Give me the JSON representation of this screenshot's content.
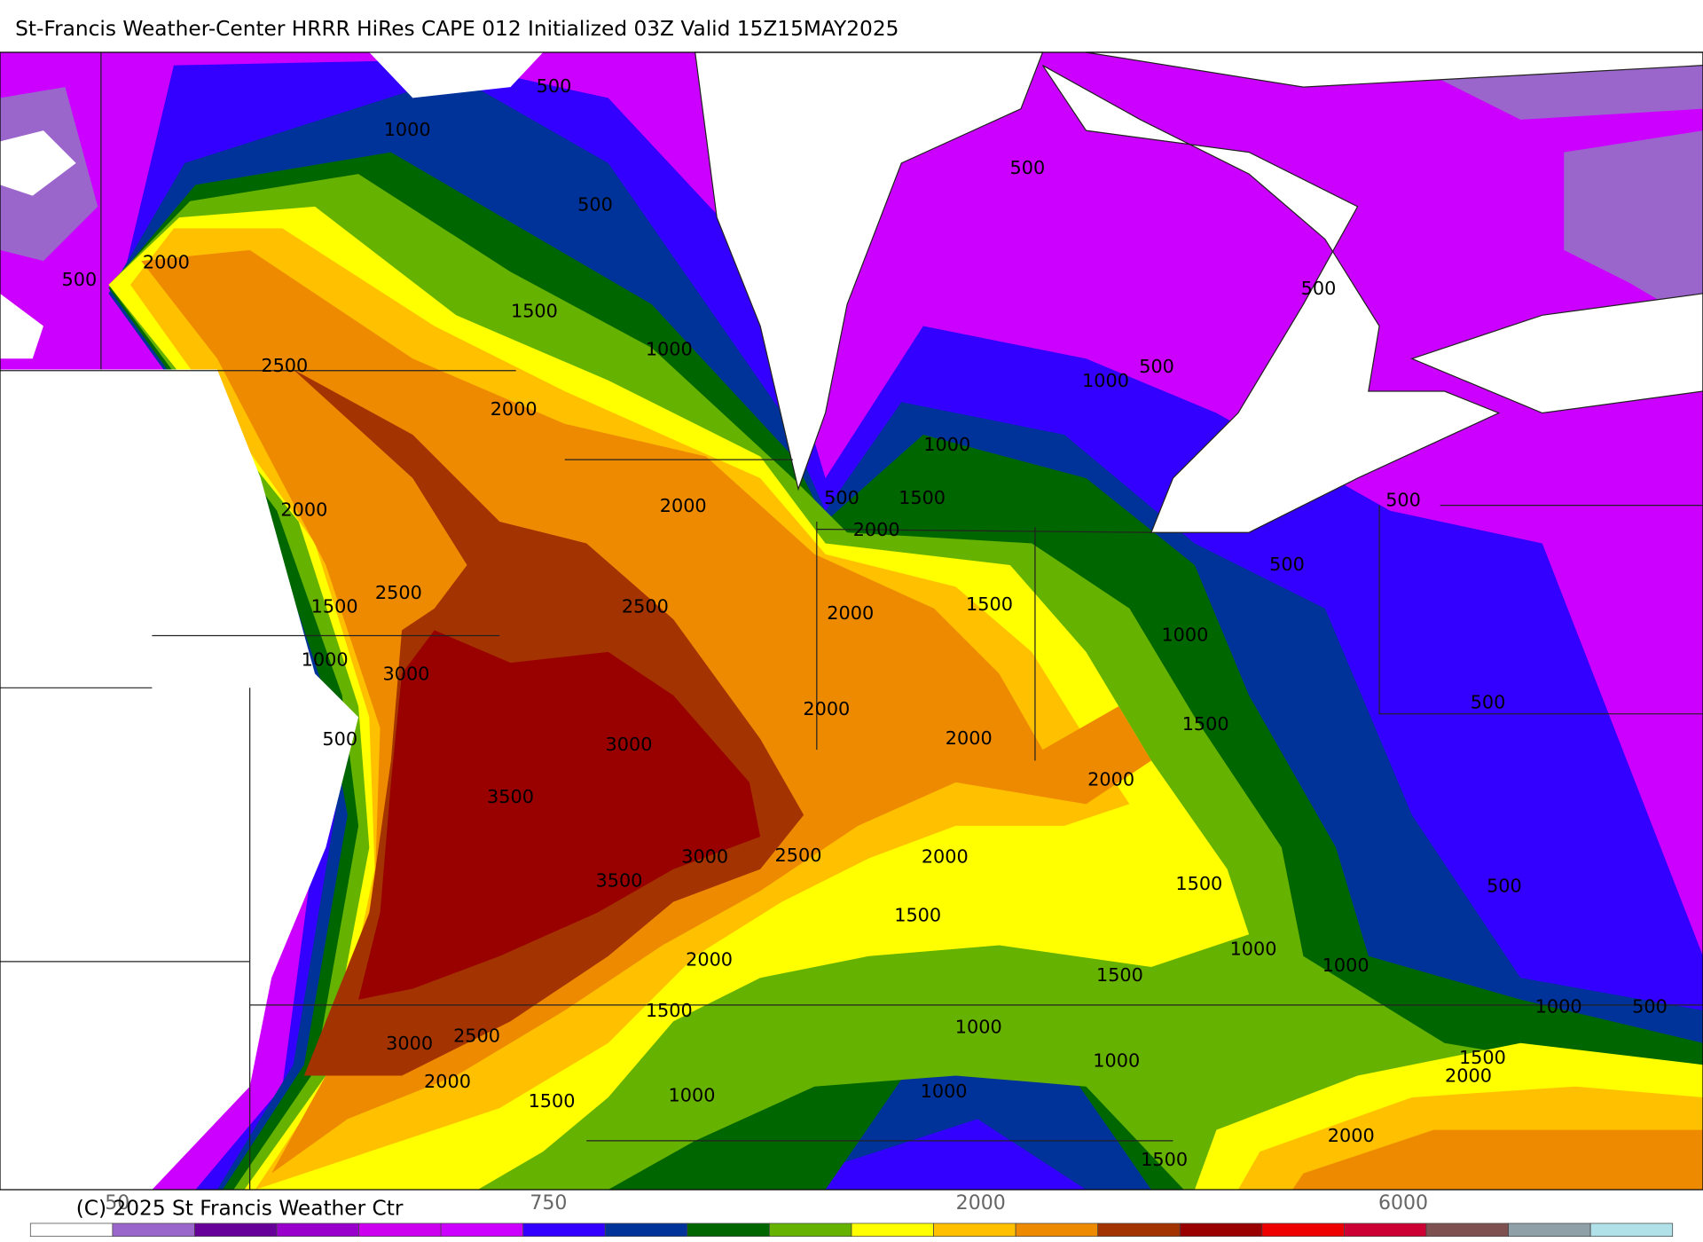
{
  "header": {
    "title": "St-Francis Weather-Center HRRR HiRes CAPE  012 Initialized  03Z Valid 15Z15MAY2025"
  },
  "map": {
    "contour_labels": [
      "500",
      "1000",
      "500",
      "500",
      "2000",
      "500",
      "1500",
      "1000",
      "2500",
      "500",
      "1000",
      "500",
      "2000",
      "1000",
      "2000",
      "2000",
      "500",
      "1500",
      "2000",
      "500",
      "500",
      "2500",
      "1500",
      "2500",
      "1500",
      "2000",
      "1000",
      "1000",
      "3000",
      "500",
      "2000",
      "1500",
      "3000",
      "500",
      "2000",
      "2000",
      "3500",
      "3000",
      "2500",
      "2000",
      "3500",
      "1500",
      "500",
      "1500",
      "1000",
      "2000",
      "1000",
      "1500",
      "1000",
      "500",
      "1500",
      "1000",
      "3000",
      "2500",
      "1000",
      "1500",
      "2000",
      "2000",
      "1000",
      "1500",
      "1000",
      "2000",
      "1500"
    ]
  },
  "colorbar": {
    "colors": [
      "#ffffff",
      "#9a66cc",
      "#660099",
      "#9900cc",
      "#cc00ee",
      "#cc00ff",
      "#3300ff",
      "#003399",
      "#006600",
      "#66b200",
      "#ffff00",
      "#ffc000",
      "#ee8a00",
      "#a33300",
      "#990000",
      "#ee0000",
      "#cc0033",
      "#7f5050",
      "#8fa0a8",
      "#b0e0e8"
    ],
    "labels": [
      "50",
      "750",
      "2000",
      "6000"
    ]
  },
  "footer": {
    "copyright": "(C) 2025 St Francis Weather Ctr"
  }
}
